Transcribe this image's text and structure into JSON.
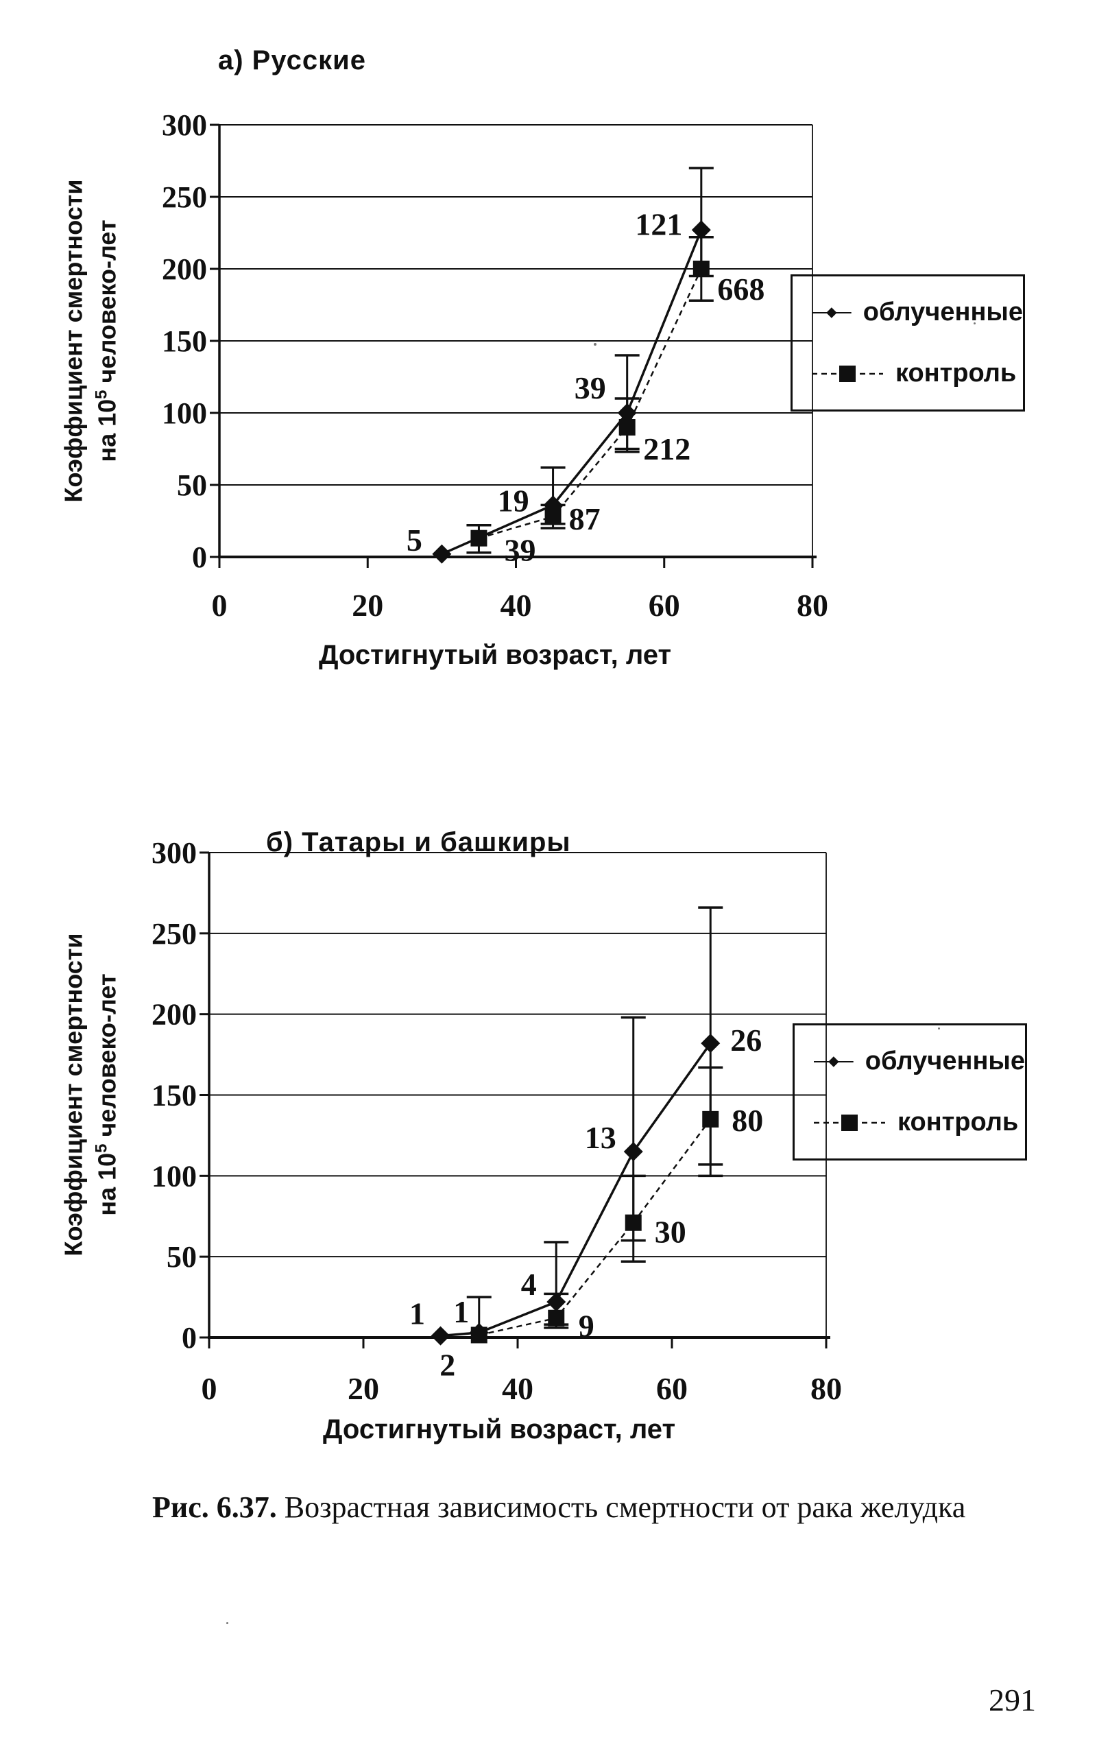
{
  "page": {
    "number": "291",
    "caption_bold": "Рис. 6.37.",
    "caption_rest": " Возрастная зависимость смертности от рака желудка",
    "ink_color": "#101010",
    "background_color": "#ffffff"
  },
  "axis_titles": {
    "y_line1": "Коэффициент смертности",
    "y_line2_prefix": "на 10",
    "y_line2_sup": "5",
    "y_line2_suffix": " человеко-лет",
    "x_title": "Достигнутый возраст, лет"
  },
  "legend": {
    "irradiated_label": "облученные",
    "control_label": "контроль"
  },
  "chart_data": [
    {
      "type": "line",
      "title": "а) Русские",
      "xlabel": "Достигнутый возраст, лет",
      "ylabel": "Коэффициент смертности на 10^5 человеко-лет",
      "xlim": [
        0,
        80
      ],
      "ylim": [
        0,
        300
      ],
      "x_ticks": [
        0,
        20,
        40,
        60,
        80
      ],
      "y_ticks": [
        0,
        50,
        100,
        150,
        200,
        250,
        300
      ],
      "grid": true,
      "legend_position": "right",
      "series": [
        {
          "name": "облученные",
          "marker": "diamond",
          "line": "solid",
          "points": [
            {
              "x": 30,
              "y": 2,
              "label": "5",
              "ldx": -40,
              "ldy": -20
            },
            {
              "x": 45,
              "y": 36,
              "label": "19",
              "ldx": -58,
              "ldy": -6,
              "err_low": 20,
              "err_high": 62
            },
            {
              "x": 55,
              "y": 100,
              "label": "39",
              "ldx": -54,
              "ldy": -36,
              "err_low": 75,
              "err_high": 140
            },
            {
              "x": 65,
              "y": 227,
              "label": "121",
              "ldx": -62,
              "ldy": -8,
              "err_low": 195,
              "err_high": 270
            }
          ]
        },
        {
          "name": "контроль",
          "marker": "square",
          "line": "dashed",
          "points": [
            {
              "x": 35,
              "y": 13,
              "label": "39",
              "ldx": 60,
              "ldy": 18,
              "err_low": 3,
              "err_high": 22
            },
            {
              "x": 45,
              "y": 28,
              "label": "87",
              "ldx": 46,
              "ldy": 4,
              "err_low": 23,
              "err_high": 36
            },
            {
              "x": 55,
              "y": 90,
              "label": "212",
              "ldx": 58,
              "ldy": 32,
              "err_low": 73,
              "err_high": 110
            },
            {
              "x": 65,
              "y": 200,
              "label": "668",
              "ldx": 58,
              "ldy": 30,
              "err_low": 178,
              "err_high": 222
            }
          ]
        }
      ]
    },
    {
      "type": "line",
      "title": "б) Татары и башкиры",
      "xlabel": "Достигнутый возраст, лет",
      "ylabel": "Коэффициент смертности на 10^5 человеко-лет",
      "xlim": [
        0,
        80
      ],
      "ylim": [
        0,
        300
      ],
      "x_ticks": [
        0,
        20,
        40,
        60,
        80
      ],
      "y_ticks": [
        0,
        50,
        100,
        150,
        200,
        250,
        300
      ],
      "grid": true,
      "legend_position": "right",
      "series": [
        {
          "name": "облученные",
          "marker": "diamond",
          "line": "solid",
          "points": [
            {
              "x": 30,
              "y": 1,
              "label": "1",
              "ldx": -34,
              "ldy": -32
            },
            {
              "x": 35,
              "y": 3,
              "label": "1",
              "ldx": -26,
              "ldy": -30,
              "err_low": 0,
              "err_high": 25
            },
            {
              "x": 45,
              "y": 22,
              "label": "4",
              "ldx": -40,
              "ldy": -25,
              "err_low": 8,
              "err_high": 59
            },
            {
              "x": 55,
              "y": 115,
              "label": "13",
              "ldx": -48,
              "ldy": -20,
              "err_low": 60,
              "err_high": 198
            },
            {
              "x": 65,
              "y": 182,
              "label": "26",
              "ldx": 52,
              "ldy": -4,
              "err_low": 100,
              "err_high": 266
            }
          ]
        },
        {
          "name": "контроль",
          "marker": "square",
          "line": "dashed",
          "points": [
            {
              "x": 35,
              "y": 1.5,
              "label": "2",
              "ldx": -46,
              "ldy": 44
            },
            {
              "x": 45,
              "y": 12,
              "label": "9",
              "ldx": 44,
              "ldy": 12,
              "err_low": 6,
              "err_high": 27
            },
            {
              "x": 55,
              "y": 71,
              "label": "30",
              "ldx": 54,
              "ldy": 14,
              "err_low": 47,
              "err_high": 100
            },
            {
              "x": 65,
              "y": 135,
              "label": "80",
              "ldx": 54,
              "ldy": 2,
              "err_low": 107,
              "err_high": 167
            }
          ]
        }
      ]
    }
  ]
}
